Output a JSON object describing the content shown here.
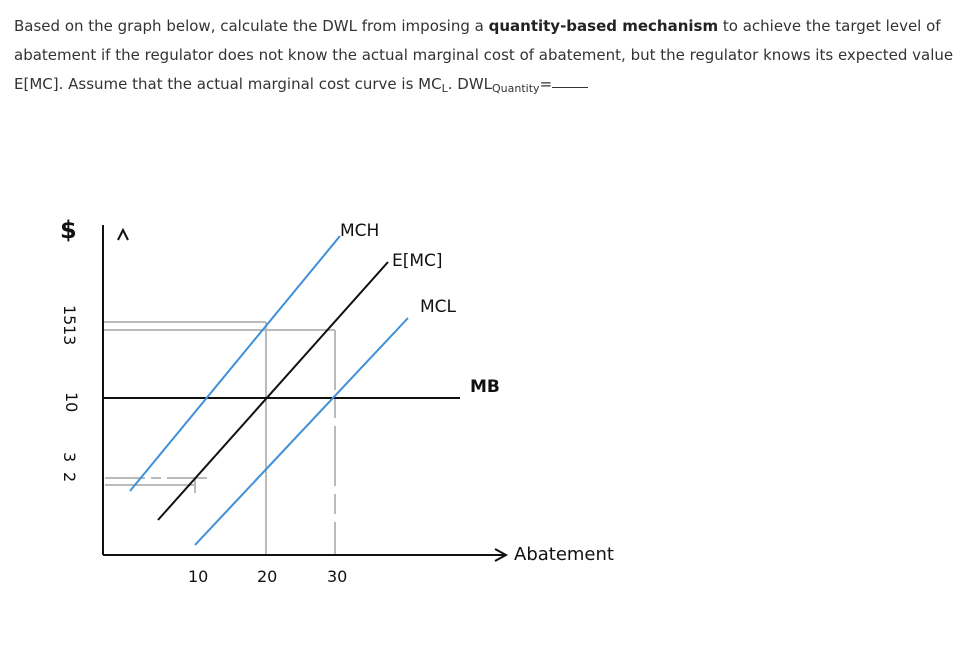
{
  "question": {
    "part1": "Based on the graph below, calculate the DWL from imposing a ",
    "bold": "quantity-based mechanism",
    "part2": " to achieve the target level of abatement if the regulator does not know the actual marginal cost of abatement, but the regulator knows its expected value E[MC]. Assume that the actual marginal cost curve is MC",
    "sub_L": "L",
    "part3": ". DWL",
    "sub_quantity": "Quantity",
    "equals": "="
  },
  "graph": {
    "y_axis_label": "$",
    "x_axis_label": "Abatement",
    "y_ticks": [
      "15",
      "13",
      "10",
      "3",
      "2"
    ],
    "x_ticks": [
      "10",
      "20",
      "30"
    ],
    "curve_labels": {
      "mch": "MCH",
      "emc": "E[MC]",
      "mcl": "MCL",
      "mb": "MB"
    },
    "colors": {
      "mch": "#3f8fd9",
      "emc": "#111111",
      "mcl": "#3f8fd9",
      "mb": "#111111",
      "guides": "#bbbbbb"
    }
  }
}
